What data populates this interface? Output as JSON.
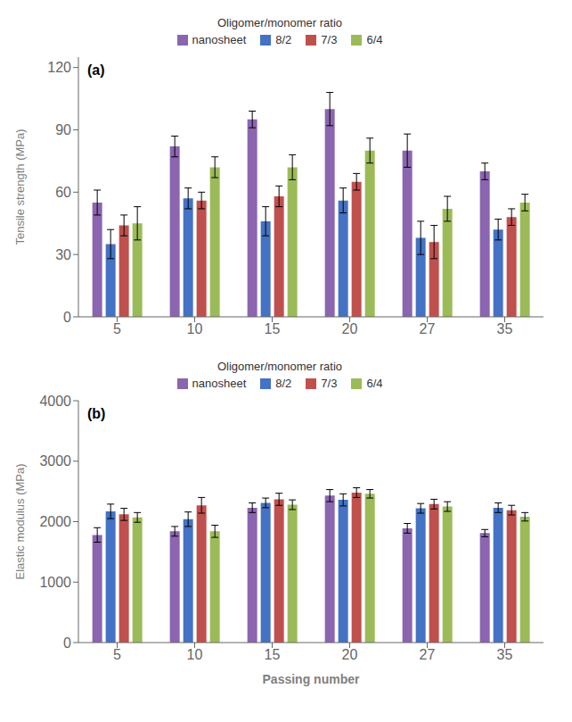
{
  "chart_data": [
    {
      "type": "bar",
      "annotation": "(a)",
      "ylabel": "Tensile strength (MPa)",
      "categories": [
        "5",
        "10",
        "15",
        "20",
        "27",
        "35"
      ],
      "series": [
        {
          "name": "nanosheet",
          "color": "#8B65B0",
          "values": [
            55,
            82,
            95,
            100,
            80,
            70
          ],
          "errors": [
            6,
            5,
            4,
            8,
            8,
            4
          ]
        },
        {
          "name": "8/2",
          "color": "#4472C4",
          "values": [
            35,
            57,
            46,
            56,
            38,
            42
          ],
          "errors": [
            7,
            5,
            7,
            6,
            8,
            5
          ]
        },
        {
          "name": "7/3",
          "color": "#C0504D",
          "values": [
            44,
            56,
            58,
            65,
            36,
            48
          ],
          "errors": [
            5,
            4,
            5,
            4,
            8,
            4
          ]
        },
        {
          "name": "6/4",
          "color": "#9BBB59",
          "values": [
            45,
            72,
            72,
            80,
            52,
            55
          ],
          "errors": [
            8,
            5,
            6,
            6,
            6,
            4
          ]
        }
      ],
      "ylim": [
        0,
        125
      ],
      "yticks": [
        0,
        30,
        60,
        90,
        120
      ],
      "grid": false,
      "legend": "top",
      "legend_title": "Oligomer/monomer ratio"
    },
    {
      "type": "bar",
      "annotation": "(b)",
      "ylabel": "Elastic modulus (MPa)",
      "xlabel": "Passing number",
      "categories": [
        "5",
        "10",
        "15",
        "20",
        "27",
        "35"
      ],
      "series": [
        {
          "name": "nanosheet",
          "color": "#8B65B0",
          "values": [
            1780,
            1840,
            2230,
            2430,
            1890,
            1810
          ],
          "errors": [
            120,
            80,
            80,
            100,
            80,
            60
          ]
        },
        {
          "name": "8/2",
          "color": "#4472C4",
          "values": [
            2170,
            2040,
            2310,
            2360,
            2220,
            2230
          ],
          "errors": [
            120,
            120,
            80,
            100,
            80,
            80
          ]
        },
        {
          "name": "7/3",
          "color": "#C0504D",
          "values": [
            2120,
            2270,
            2370,
            2480,
            2290,
            2190
          ],
          "errors": [
            100,
            130,
            100,
            80,
            80,
            80
          ]
        },
        {
          "name": "6/4",
          "color": "#9BBB59",
          "values": [
            2070,
            1840,
            2280,
            2460,
            2250,
            2080
          ],
          "errors": [
            80,
            100,
            80,
            70,
            80,
            70
          ]
        }
      ],
      "ylim": [
        0,
        4000
      ],
      "yticks": [
        0,
        1000,
        2000,
        3000,
        4000
      ],
      "grid": false,
      "legend": "top",
      "legend_title": "Oligomer/monomer ratio"
    }
  ]
}
